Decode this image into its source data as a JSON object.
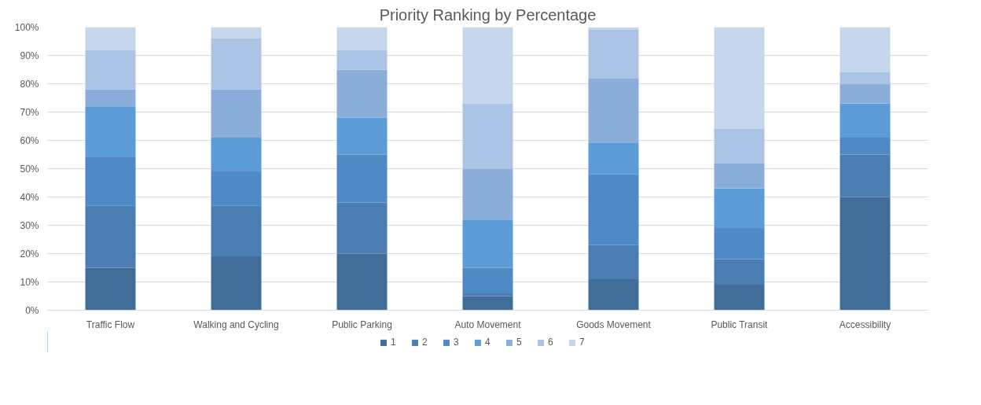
{
  "chart_data": {
    "type": "bar",
    "title": "Priority Ranking by Percentage",
    "stacked": true,
    "categories": [
      "Traffic Flow",
      "Walking and Cycling",
      "Public Parking",
      "Auto Movement",
      "Goods Movement",
      "Public Transit",
      "Accessibility"
    ],
    "series": [
      {
        "name": "1",
        "color": "#416d99",
        "values": [
          15,
          19,
          20,
          5,
          11,
          9,
          40
        ]
      },
      {
        "name": "2",
        "color": "#4a7db2",
        "values": [
          22,
          18,
          18,
          1,
          12,
          9,
          15
        ]
      },
      {
        "name": "3",
        "color": "#508ac4",
        "values": [
          17,
          12,
          17,
          9,
          25,
          11,
          6
        ]
      },
      {
        "name": "4",
        "color": "#5b9bd6",
        "values": [
          18,
          12,
          13,
          17,
          11,
          14,
          12
        ]
      },
      {
        "name": "5",
        "color": "#8badda",
        "values": [
          6,
          17,
          17,
          18,
          23,
          9,
          7
        ]
      },
      {
        "name": "6",
        "color": "#abc3e5",
        "values": [
          14,
          18,
          7,
          23,
          17,
          12,
          4
        ]
      },
      {
        "name": "7",
        "color": "#c6d6ec",
        "values": [
          8,
          4,
          8,
          27,
          1,
          36,
          16
        ]
      }
    ],
    "ylim": [
      0,
      100
    ],
    "yticks": [
      {
        "value": 0,
        "label": "0%"
      },
      {
        "value": 10,
        "label": "10%"
      },
      {
        "value": 20,
        "label": "20%"
      },
      {
        "value": 30,
        "label": "30%"
      },
      {
        "value": 40,
        "label": "40%"
      },
      {
        "value": 50,
        "label": "50%"
      },
      {
        "value": 60,
        "label": "60%"
      },
      {
        "value": 70,
        "label": "70%"
      },
      {
        "value": 80,
        "label": "80%"
      },
      {
        "value": 90,
        "label": "90%"
      },
      {
        "value": 100,
        "label": "100%"
      }
    ],
    "grid": "y",
    "legend": "bottom"
  }
}
